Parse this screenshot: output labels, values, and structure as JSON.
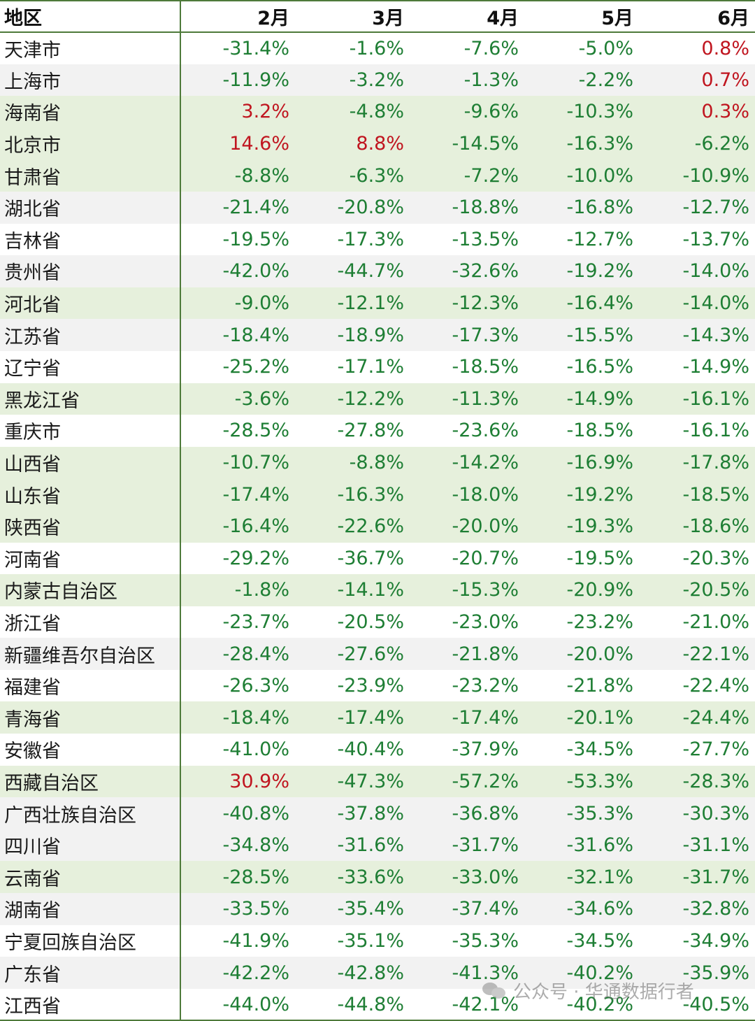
{
  "table": {
    "headers": [
      "地区",
      "2月",
      "3月",
      "4月",
      "5月",
      "6月"
    ],
    "rows": [
      {
        "region": "天津市",
        "values": [
          "-31.4%",
          "-1.6%",
          "-7.6%",
          "-5.0%",
          "0.8%"
        ],
        "bg": "white"
      },
      {
        "region": "上海市",
        "values": [
          "-11.9%",
          "-3.2%",
          "-1.3%",
          "-2.2%",
          "0.7%"
        ],
        "bg": "gray"
      },
      {
        "region": "海南省",
        "values": [
          "3.2%",
          "-4.8%",
          "-9.6%",
          "-10.3%",
          "0.3%"
        ],
        "bg": "green"
      },
      {
        "region": "北京市",
        "values": [
          "14.6%",
          "8.8%",
          "-14.5%",
          "-16.3%",
          "-6.2%"
        ],
        "bg": "green"
      },
      {
        "region": "甘肃省",
        "values": [
          "-8.8%",
          "-6.3%",
          "-7.2%",
          "-10.0%",
          "-10.9%"
        ],
        "bg": "green"
      },
      {
        "region": "湖北省",
        "values": [
          "-21.4%",
          "-20.8%",
          "-18.8%",
          "-16.8%",
          "-12.7%"
        ],
        "bg": "gray"
      },
      {
        "region": "吉林省",
        "values": [
          "-19.5%",
          "-17.3%",
          "-13.5%",
          "-12.7%",
          "-13.7%"
        ],
        "bg": "white"
      },
      {
        "region": "贵州省",
        "values": [
          "-42.0%",
          "-44.7%",
          "-32.6%",
          "-19.2%",
          "-14.0%"
        ],
        "bg": "gray"
      },
      {
        "region": "河北省",
        "values": [
          "-9.0%",
          "-12.1%",
          "-12.3%",
          "-16.4%",
          "-14.0%"
        ],
        "bg": "green"
      },
      {
        "region": "江苏省",
        "values": [
          "-18.4%",
          "-18.9%",
          "-17.3%",
          "-15.5%",
          "-14.3%"
        ],
        "bg": "gray"
      },
      {
        "region": "辽宁省",
        "values": [
          "-25.2%",
          "-17.1%",
          "-18.5%",
          "-16.5%",
          "-14.9%"
        ],
        "bg": "white"
      },
      {
        "region": "黑龙江省",
        "values": [
          "-3.6%",
          "-12.2%",
          "-11.3%",
          "-14.9%",
          "-16.1%"
        ],
        "bg": "green"
      },
      {
        "region": "重庆市",
        "values": [
          "-28.5%",
          "-27.8%",
          "-23.6%",
          "-18.5%",
          "-16.1%"
        ],
        "bg": "white"
      },
      {
        "region": "山西省",
        "values": [
          "-10.7%",
          "-8.8%",
          "-14.2%",
          "-16.9%",
          "-17.8%"
        ],
        "bg": "green"
      },
      {
        "region": "山东省",
        "values": [
          "-17.4%",
          "-16.3%",
          "-18.0%",
          "-19.2%",
          "-18.5%"
        ],
        "bg": "green"
      },
      {
        "region": "陕西省",
        "values": [
          "-16.4%",
          "-22.6%",
          "-20.0%",
          "-19.3%",
          "-18.6%"
        ],
        "bg": "green"
      },
      {
        "region": "河南省",
        "values": [
          "-29.2%",
          "-36.7%",
          "-20.7%",
          "-19.5%",
          "-20.3%"
        ],
        "bg": "white"
      },
      {
        "region": "内蒙古自治区",
        "values": [
          "-1.8%",
          "-14.1%",
          "-15.3%",
          "-20.9%",
          "-20.5%"
        ],
        "bg": "green"
      },
      {
        "region": "浙江省",
        "values": [
          "-23.7%",
          "-20.5%",
          "-23.0%",
          "-23.2%",
          "-21.0%"
        ],
        "bg": "white"
      },
      {
        "region": "新疆维吾尔自治区",
        "values": [
          "-28.4%",
          "-27.6%",
          "-21.8%",
          "-20.0%",
          "-22.1%"
        ],
        "bg": "gray"
      },
      {
        "region": "福建省",
        "values": [
          "-26.3%",
          "-23.9%",
          "-23.2%",
          "-21.8%",
          "-22.4%"
        ],
        "bg": "white"
      },
      {
        "region": "青海省",
        "values": [
          "-18.4%",
          "-17.4%",
          "-17.4%",
          "-20.1%",
          "-24.4%"
        ],
        "bg": "green"
      },
      {
        "region": "安徽省",
        "values": [
          "-41.0%",
          "-40.4%",
          "-37.9%",
          "-34.5%",
          "-27.7%"
        ],
        "bg": "white"
      },
      {
        "region": "西藏自治区",
        "values": [
          "30.9%",
          "-47.3%",
          "-57.2%",
          "-53.3%",
          "-28.3%"
        ],
        "bg": "green"
      },
      {
        "region": "广西壮族自治区",
        "values": [
          "-40.8%",
          "-37.8%",
          "-36.8%",
          "-35.3%",
          "-30.3%"
        ],
        "bg": "gray"
      },
      {
        "region": "四川省",
        "values": [
          "-34.8%",
          "-31.6%",
          "-31.7%",
          "-31.6%",
          "-31.1%"
        ],
        "bg": "gray"
      },
      {
        "region": "云南省",
        "values": [
          "-28.5%",
          "-33.6%",
          "-33.0%",
          "-32.1%",
          "-31.7%"
        ],
        "bg": "green"
      },
      {
        "region": "湖南省",
        "values": [
          "-33.5%",
          "-35.4%",
          "-37.4%",
          "-34.6%",
          "-32.8%"
        ],
        "bg": "gray"
      },
      {
        "region": "宁夏回族自治区",
        "values": [
          "-41.9%",
          "-35.1%",
          "-35.3%",
          "-34.5%",
          "-34.9%"
        ],
        "bg": "white"
      },
      {
        "region": "广东省",
        "values": [
          "-42.2%",
          "-42.8%",
          "-41.3%",
          "-40.2%",
          "-35.9%"
        ],
        "bg": "gray"
      },
      {
        "region": "江西省",
        "values": [
          "-44.0%",
          "-44.8%",
          "-42.1%",
          "-40.2%",
          "-40.5%"
        ],
        "bg": "white"
      }
    ]
  },
  "watermark": {
    "text": "公众号 · 华通数据行者",
    "icon": "wechat-icon"
  },
  "colors": {
    "negative": "#1e7e34",
    "positive": "#c0151f",
    "border": "#4e7a3a",
    "row_green": "#e6f0dc",
    "row_gray": "#f2f2f2"
  }
}
